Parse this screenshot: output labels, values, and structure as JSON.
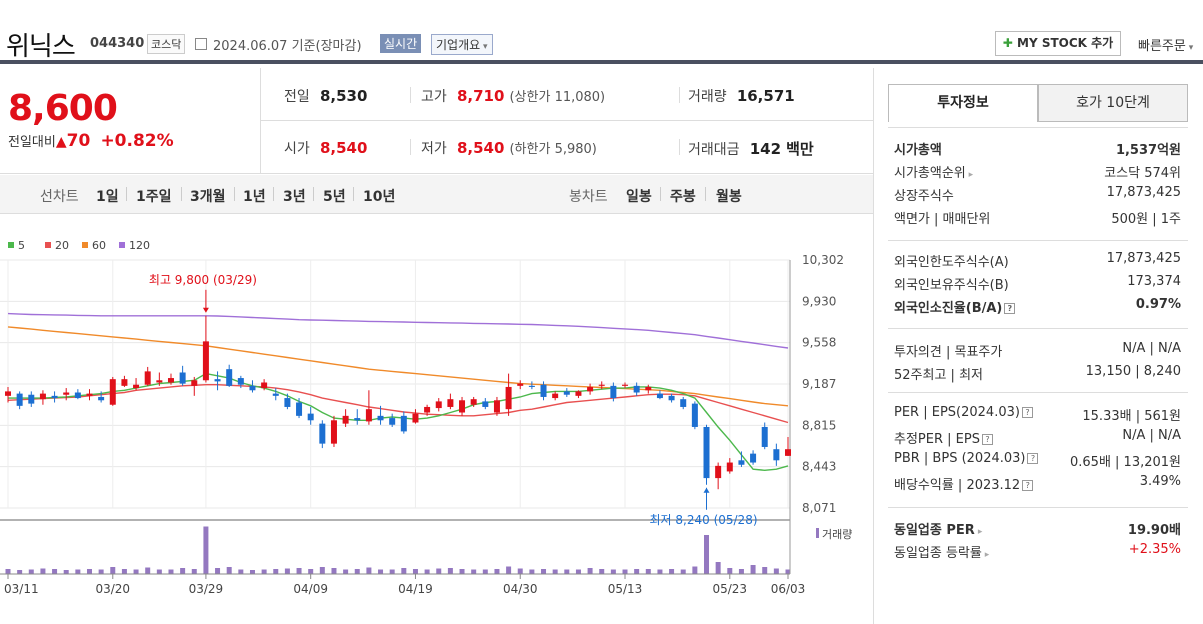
{
  "header": {
    "title": "위닉스",
    "code": "044340",
    "market": "코스닥",
    "date": "2024.06.07",
    "basis": "기준(장마감)",
    "realtime": "실시간",
    "company_info": "기업개요",
    "my_stock": "MY STOCK 추가",
    "quick_order": "빠른주문"
  },
  "price": {
    "now": "8,600",
    "diff_label": "전일대비",
    "diff": "70",
    "rate": "+0.82%",
    "prev_label": "전일",
    "prev": "8,530",
    "high_label": "고가",
    "high": "8,710",
    "upper": "(상한가 11,080)",
    "vol_label": "거래량",
    "volume": "16,571",
    "open_label": "시가",
    "open": "8,540",
    "low_label": "저가",
    "low": "8,540",
    "lower": "(하한가 5,980)",
    "amt_label": "거래대금",
    "amount": "142",
    "amt_unit": "백만"
  },
  "periods": {
    "line_label": "선차트",
    "line_items": [
      "1일",
      "1주일",
      "3개월",
      "1년",
      "3년",
      "5년",
      "10년"
    ],
    "candle_label": "봉차트",
    "candle_items": [
      "일봉",
      "주봉",
      "월봉"
    ]
  },
  "chart_data": {
    "type": "candlestick",
    "legend": [
      {
        "name": "5",
        "color": "#4cb84c"
      },
      {
        "name": "20",
        "color": "#e85050"
      },
      {
        "name": "60",
        "color": "#f08a2a"
      },
      {
        "name": "120",
        "color": "#a070d8"
      }
    ],
    "yticks": [
      "10,302",
      "9,930",
      "9,558",
      "9,187",
      "8,815",
      "8,443",
      "8,071"
    ],
    "ylim": [
      8071,
      10302
    ],
    "xticks": [
      "03/11",
      "03/20",
      "03/29",
      "04/09",
      "04/19",
      "04/30",
      "05/13",
      "05/23",
      "06/03"
    ],
    "max_label": "최고 9,800 (03/29)",
    "min_label": "최저 8,240 (05/28)",
    "volume_label": "거래량",
    "candles": [
      [
        9080,
        9160,
        9020,
        9120
      ],
      [
        9100,
        9120,
        8960,
        8990
      ],
      [
        9090,
        9120,
        8980,
        9010
      ],
      [
        9050,
        9130,
        9000,
        9100
      ],
      [
        9080,
        9120,
        9020,
        9060
      ],
      [
        9090,
        9150,
        9040,
        9110
      ],
      [
        9110,
        9140,
        9050,
        9060
      ],
      [
        9080,
        9140,
        9040,
        9100
      ],
      [
        9070,
        9120,
        9020,
        9040
      ],
      [
        9000,
        9250,
        8990,
        9230
      ],
      [
        9170,
        9260,
        9160,
        9230
      ],
      [
        9150,
        9240,
        9130,
        9180
      ],
      [
        9180,
        9340,
        9170,
        9300
      ],
      [
        9200,
        9290,
        9170,
        9220
      ],
      [
        9200,
        9280,
        9180,
        9240
      ],
      [
        9290,
        9350,
        9170,
        9190
      ],
      [
        9170,
        9250,
        9080,
        9220
      ],
      [
        9220,
        9800,
        9200,
        9570
      ],
      [
        9230,
        9300,
        9130,
        9210
      ],
      [
        9320,
        9360,
        9160,
        9170
      ],
      [
        9240,
        9260,
        9150,
        9180
      ],
      [
        9170,
        9220,
        9110,
        9130
      ],
      [
        9150,
        9230,
        9130,
        9200
      ],
      [
        9100,
        9150,
        9040,
        9080
      ],
      [
        9060,
        9100,
        8960,
        8980
      ],
      [
        9020,
        9060,
        8880,
        8900
      ],
      [
        8920,
        8980,
        8820,
        8860
      ],
      [
        8830,
        8860,
        8610,
        8650
      ],
      [
        8650,
        8900,
        8620,
        8860
      ],
      [
        8830,
        8960,
        8800,
        8900
      ],
      [
        8880,
        8960,
        8820,
        8860
      ],
      [
        8850,
        9130,
        8820,
        8960
      ],
      [
        8900,
        8990,
        8820,
        8860
      ],
      [
        8880,
        8920,
        8800,
        8820
      ],
      [
        8900,
        8940,
        8740,
        8760
      ],
      [
        8840,
        8960,
        8830,
        8920
      ],
      [
        8930,
        9000,
        8900,
        8980
      ],
      [
        8970,
        9060,
        8940,
        9030
      ],
      [
        8980,
        9100,
        8960,
        9050
      ],
      [
        8930,
        9070,
        8900,
        9040
      ],
      [
        9000,
        9070,
        8980,
        9050
      ],
      [
        9030,
        9060,
        8960,
        8980
      ],
      [
        8930,
        9070,
        8900,
        9040
      ],
      [
        8960,
        9280,
        8900,
        9160
      ],
      [
        9170,
        9220,
        9140,
        9190
      ],
      [
        9170,
        9210,
        9140,
        9160
      ],
      [
        9180,
        9210,
        9040,
        9070
      ],
      [
        9060,
        9120,
        9040,
        9100
      ],
      [
        9120,
        9150,
        9070,
        9090
      ],
      [
        9080,
        9130,
        9060,
        9120
      ],
      [
        9120,
        9190,
        9090,
        9160
      ],
      [
        9170,
        9210,
        9140,
        9180
      ],
      [
        9170,
        9200,
        9030,
        9060
      ],
      [
        9170,
        9200,
        9150,
        9180
      ],
      [
        9170,
        9200,
        9080,
        9110
      ],
      [
        9130,
        9180,
        9100,
        9160
      ],
      [
        9100,
        9130,
        9050,
        9060
      ],
      [
        9080,
        9100,
        9020,
        9040
      ],
      [
        9050,
        9070,
        8960,
        8980
      ],
      [
        9010,
        9030,
        8780,
        8800
      ],
      [
        8800,
        8820,
        8280,
        8340
      ],
      [
        8340,
        8480,
        8240,
        8450
      ],
      [
        8400,
        8520,
        8380,
        8480
      ],
      [
        8500,
        8580,
        8440,
        8460
      ],
      [
        8560,
        8590,
        8460,
        8480
      ],
      [
        8800,
        8840,
        8600,
        8620
      ],
      [
        8600,
        8650,
        8450,
        8500
      ],
      [
        8540,
        8710,
        8540,
        8600
      ]
    ],
    "ma5": [
      9060,
      9060,
      9060,
      9060,
      9065,
      9070,
      9080,
      9090,
      9100,
      9120,
      9130,
      9150,
      9170,
      9190,
      9200,
      9210,
      9220,
      9280,
      9260,
      9240,
      9200,
      9170,
      9150,
      9120,
      9080,
      9030,
      8990,
      8930,
      8880,
      8870,
      8860,
      8860,
      8880,
      8890,
      8880,
      8870,
      8880,
      8900,
      8930,
      8960,
      9000,
      9020,
      9030,
      9050,
      9070,
      9100,
      9110,
      9120,
      9120,
      9120,
      9130,
      9140,
      9150,
      9150,
      9160,
      9160,
      9150,
      9130,
      9100,
      9060,
      8930,
      8800,
      8680,
      8550,
      8420,
      8410,
      8420,
      8450
    ],
    "ma20": [
      9040,
      9045,
      9050,
      9055,
      9060,
      9065,
      9070,
      9080,
      9090,
      9100,
      9110,
      9130,
      9140,
      9150,
      9160,
      9170,
      9175,
      9180,
      9180,
      9175,
      9170,
      9165,
      9160,
      9150,
      9135,
      9115,
      9090,
      9060,
      9040,
      9020,
      9000,
      8980,
      8965,
      8950,
      8935,
      8925,
      8915,
      8910,
      8905,
      8900,
      8900,
      8910,
      8920,
      8930,
      8950,
      8960,
      8980,
      9000,
      9020,
      9030,
      9040,
      9050,
      9060,
      9070,
      9080,
      9090,
      9095,
      9095,
      9090,
      9080,
      9050,
      9020,
      8990,
      8960,
      8930,
      8900,
      8870,
      8840
    ],
    "ma60": [
      9700,
      9690,
      9680,
      9670,
      9660,
      9650,
      9640,
      9630,
      9620,
      9610,
      9600,
      9590,
      9580,
      9570,
      9560,
      9550,
      9540,
      9530,
      9515,
      9500,
      9485,
      9470,
      9455,
      9440,
      9425,
      9410,
      9395,
      9380,
      9365,
      9350,
      9335,
      9320,
      9310,
      9300,
      9290,
      9280,
      9270,
      9260,
      9250,
      9240,
      9230,
      9220,
      9210,
      9200,
      9190,
      9185,
      9180,
      9175,
      9170,
      9165,
      9160,
      9155,
      9150,
      9145,
      9140,
      9135,
      9130,
      9120,
      9110,
      9100,
      9085,
      9070,
      9055,
      9040,
      9025,
      9010,
      9000,
      8990
    ],
    "ma120": [
      9820,
      9815,
      9812,
      9810,
      9808,
      9806,
      9804,
      9802,
      9800,
      9800,
      9800,
      9800,
      9800,
      9800,
      9800,
      9800,
      9800,
      9800,
      9798,
      9795,
      9790,
      9785,
      9780,
      9775,
      9770,
      9765,
      9762,
      9760,
      9758,
      9755,
      9752,
      9750,
      9748,
      9746,
      9744,
      9742,
      9740,
      9738,
      9736,
      9734,
      9732,
      9730,
      9728,
      9726,
      9724,
      9722,
      9718,
      9714,
      9710,
      9706,
      9700,
      9694,
      9688,
      9682,
      9676,
      9670,
      9660,
      9650,
      9640,
      9630,
      9615,
      9600,
      9585,
      9570,
      9555,
      9540,
      9525,
      9510
    ],
    "volumes": [
      10,
      8,
      9,
      11,
      10,
      8,
      9,
      10,
      9,
      14,
      10,
      9,
      13,
      9,
      9,
      12,
      10,
      95,
      12,
      14,
      9,
      8,
      9,
      10,
      11,
      12,
      10,
      14,
      12,
      9,
      10,
      13,
      9,
      9,
      12,
      10,
      9,
      11,
      12,
      10,
      9,
      9,
      10,
      15,
      11,
      9,
      10,
      9,
      9,
      9,
      12,
      10,
      9,
      9,
      10,
      10,
      9,
      10,
      9,
      15,
      78,
      24,
      12,
      10,
      18,
      14,
      11,
      9
    ]
  },
  "right": {
    "tab_invest": "투자정보",
    "tab_order": "호가 10단계",
    "rows1": [
      {
        "k": "시가총액",
        "v": "1,537억원",
        "bold": true
      },
      {
        "k": "시가총액순위",
        "v": "코스닥 574위",
        "arrow": true
      },
      {
        "k": "상장주식수",
        "v": "17,873,425"
      },
      {
        "k": "액면가 | 매매단위",
        "v": "500원 | 1주"
      }
    ],
    "rows2": [
      {
        "k": "외국인한도주식수(A)",
        "v": "17,873,425"
      },
      {
        "k": "외국인보유주식수(B)",
        "v": "173,374"
      },
      {
        "k": "외국인소진율(B/A)",
        "v": "0.97%",
        "bold": true,
        "help": true
      }
    ],
    "rows3": [
      {
        "k": "투자의견 | 목표주가",
        "v": "N/A | N/A"
      },
      {
        "k": "52주최고 | 최저",
        "v": "13,150 | 8,240"
      }
    ],
    "rows4": [
      {
        "k": "PER | EPS(2024.03)",
        "v": "15.33배 | 561원",
        "help": true
      },
      {
        "k": "추정PER | EPS",
        "v": "N/A | N/A",
        "help": true
      },
      {
        "k": "PBR | BPS (2024.03)",
        "v": "0.65배 | 13,201원",
        "help": true
      },
      {
        "k": "배당수익률 | 2023.12",
        "v": "3.49%",
        "help": true
      }
    ],
    "rows5": [
      {
        "k": "동일업종 PER",
        "v": "19.90배",
        "bold": true,
        "arrow": true
      },
      {
        "k": "동일업종 등락률",
        "v": "+2.35%",
        "red": true,
        "arrow": true
      }
    ]
  }
}
